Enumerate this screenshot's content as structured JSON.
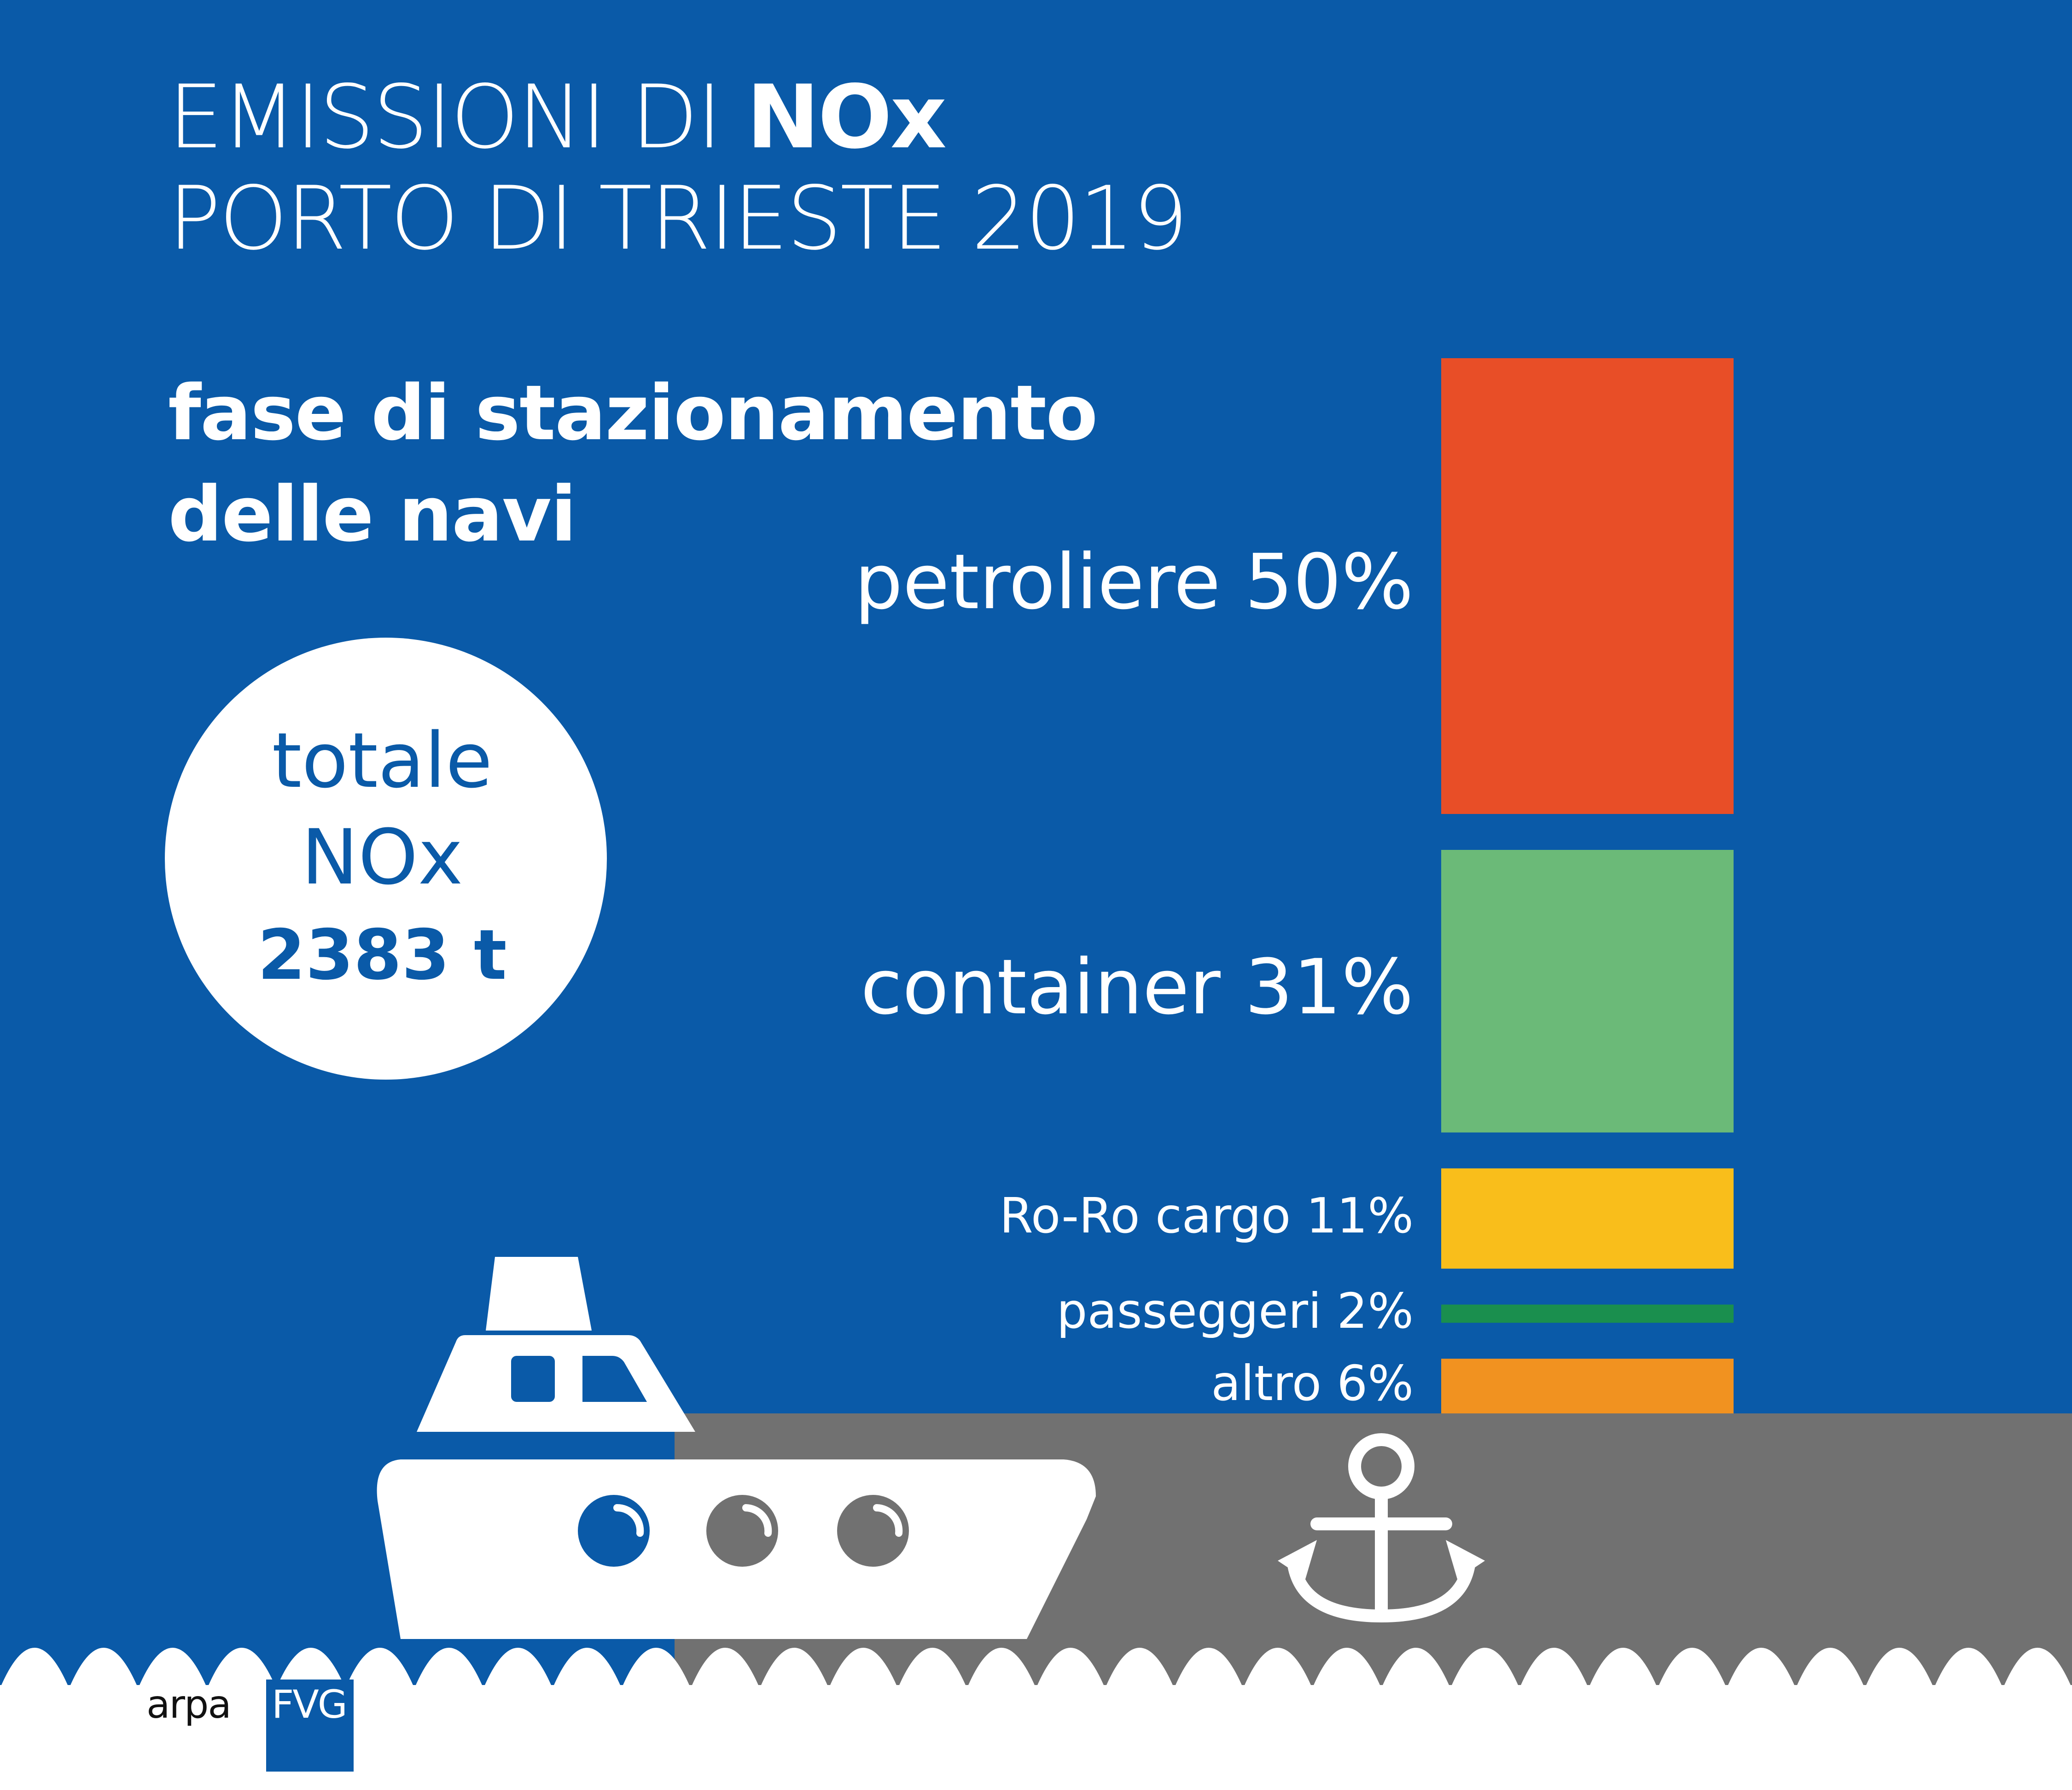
{
  "title": {
    "line1_prefix": "EMISSIONI DI ",
    "line1_bold": "NOx",
    "line2": "PORTO DI TRIESTE 2019"
  },
  "subtitle": {
    "line1": "fase di stazionamento",
    "line2": "delle navi"
  },
  "total": {
    "line1": "totale",
    "line2": "NOx",
    "value": "2383 t"
  },
  "chart_data": {
    "type": "bar",
    "orientation": "stacked-vertical",
    "unit": "%",
    "categories": [
      "petroliere",
      "container",
      "Ro-Ro cargo",
      "passeggeri",
      "altro"
    ],
    "values": [
      50,
      31,
      11,
      2,
      6
    ],
    "labels": [
      "petroliere 50%",
      "container 31%",
      "Ro-Ro cargo 11%",
      "passeggeri 2%",
      "altro 6%"
    ],
    "colors": [
      "#e84e27",
      "#6bba78",
      "#f9be1b",
      "#1a8f4e",
      "#f19220"
    ]
  },
  "colors": {
    "background": "#0a5aa8",
    "dock": "#717171",
    "white": "#ffffff"
  },
  "logo": {
    "left": "arpa",
    "right": "FVG"
  }
}
